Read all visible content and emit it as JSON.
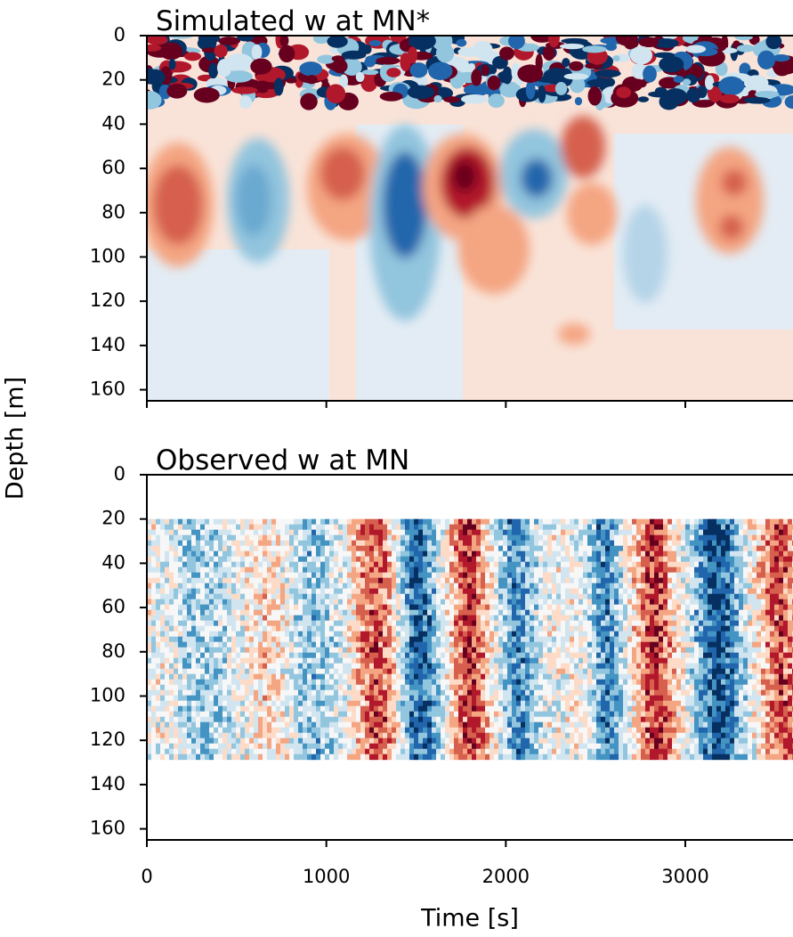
{
  "chart_data": [
    {
      "type": "contour",
      "title": "Simulated w at MN*",
      "ylabel": "Depth [m]",
      "xlim": [
        0,
        3600
      ],
      "ylim": [
        165,
        0
      ],
      "xticks": [
        0,
        1000,
        2000,
        3000
      ],
      "xtick_labels": false,
      "yticks": [
        0,
        20,
        40,
        60,
        80,
        100,
        120,
        140,
        160
      ],
      "colormap": "RdBu_r"
    },
    {
      "type": "contour",
      "title": "Observed w at MN",
      "xlabel": "Time [s]",
      "xlim": [
        0,
        3600
      ],
      "ylim": [
        165,
        0
      ],
      "xticks": [
        0,
        1000,
        2000,
        3000
      ],
      "xtick_labels": true,
      "yticks": [
        0,
        20,
        40,
        60,
        80,
        100,
        120,
        140,
        160
      ],
      "colormap": "RdBu_r"
    }
  ]
}
